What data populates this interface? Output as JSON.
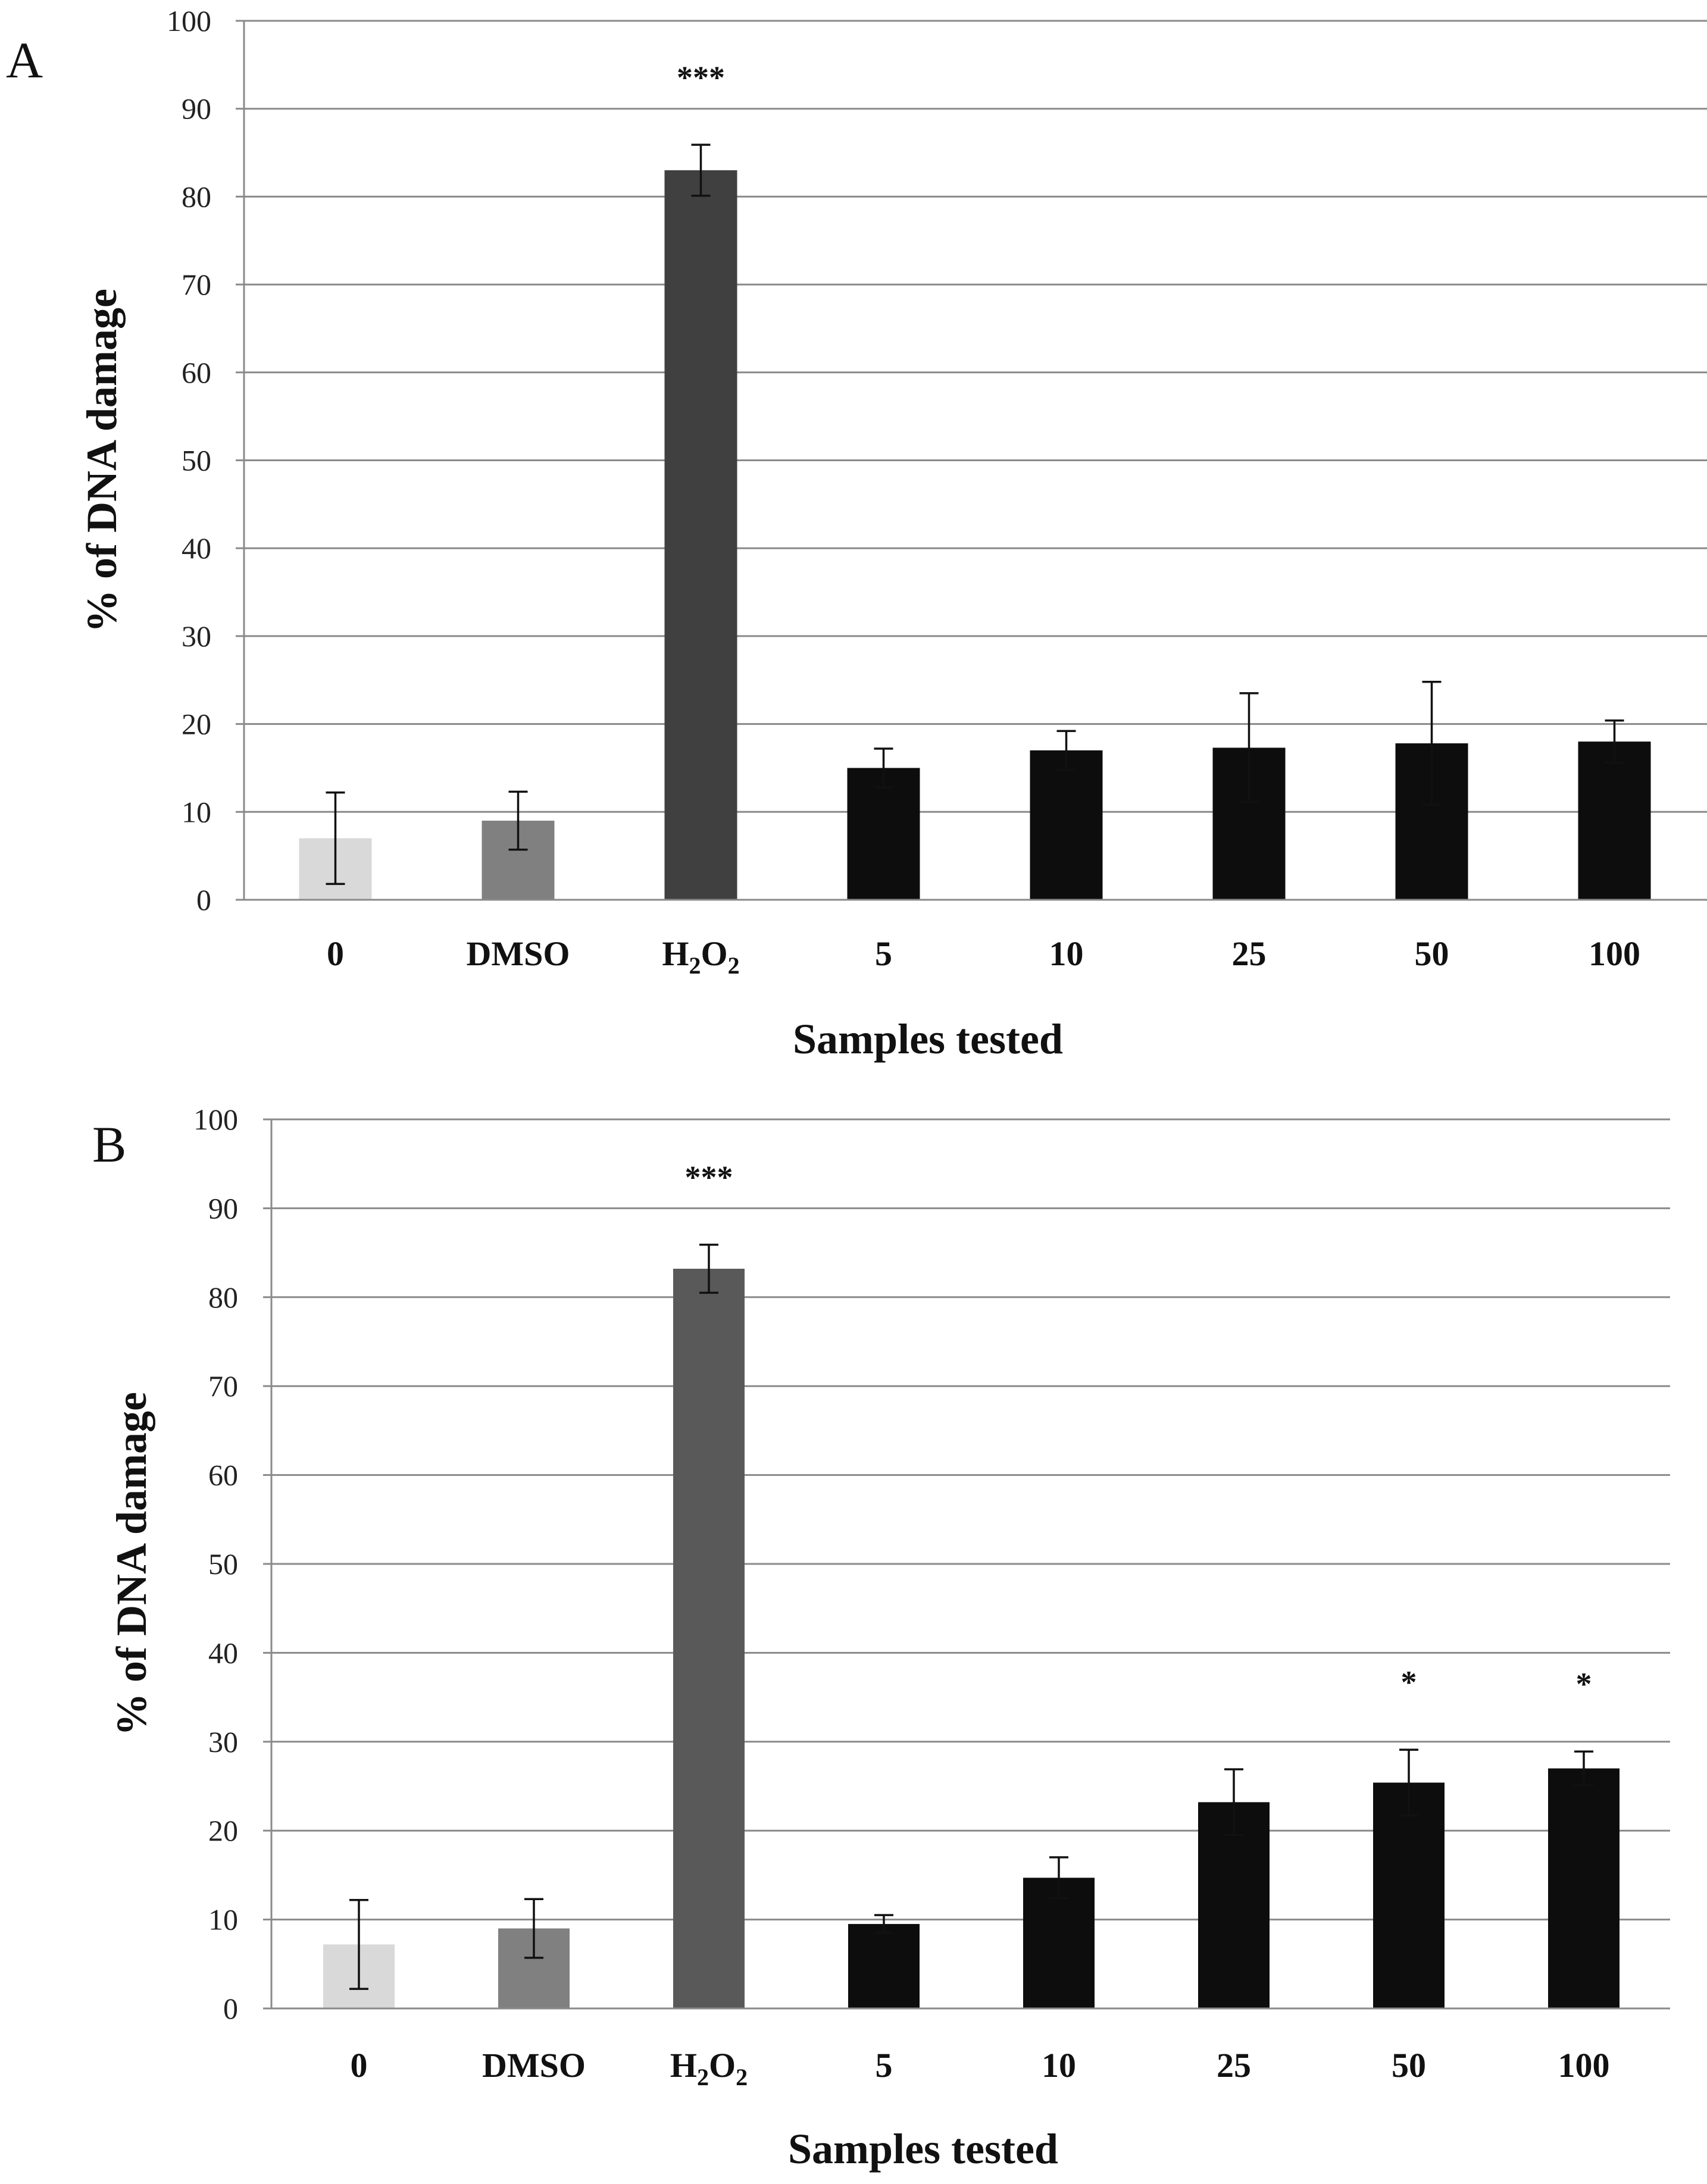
{
  "chart_data": [
    {
      "panel": "A",
      "type": "bar",
      "title": "",
      "xlabel": "Samples tested",
      "ylabel": "% of DNA damage",
      "ylim": [
        0,
        100
      ],
      "yticks": [
        0,
        10,
        20,
        30,
        40,
        50,
        60,
        70,
        80,
        90,
        100
      ],
      "grid": true,
      "categories": [
        "0",
        "DMSO",
        "H2O2",
        "5",
        "10",
        "25",
        "50",
        "100"
      ],
      "values": [
        7,
        9,
        83,
        15,
        17,
        17.3,
        17.8,
        18
      ],
      "errors": [
        5.2,
        3.3,
        2.9,
        2.2,
        2.2,
        6.2,
        7.0,
        2.4
      ],
      "colors": [
        "#d9d9d9",
        "#808080",
        "#404040",
        "#0d0d0d",
        "#0d0d0d",
        "#0d0d0d",
        "#0d0d0d",
        "#0d0d0d"
      ],
      "significance": [
        "",
        "",
        "***",
        "",
        "",
        "",
        "",
        ""
      ]
    },
    {
      "panel": "B",
      "type": "bar",
      "title": "",
      "xlabel": "Samples tested",
      "ylabel": "% of DNA damage",
      "ylim": [
        0,
        100
      ],
      "yticks": [
        0,
        10,
        20,
        30,
        40,
        50,
        60,
        70,
        80,
        90,
        100
      ],
      "grid": true,
      "categories": [
        "0",
        "DMSO",
        "H2O2",
        "5",
        "10",
        "25",
        "50",
        "100"
      ],
      "values": [
        7.2,
        9,
        83.2,
        9.5,
        14.7,
        23.2,
        25.4,
        27
      ],
      "errors": [
        5.0,
        3.3,
        2.7,
        1.0,
        2.3,
        3.7,
        3.7,
        1.9
      ],
      "colors": [
        "#d9d9d9",
        "#808080",
        "#595959",
        "#0d0d0d",
        "#0d0d0d",
        "#0d0d0d",
        "#0d0d0d",
        "#0d0d0d"
      ],
      "significance": [
        "",
        "",
        "***",
        "",
        "",
        "",
        "*",
        "*"
      ]
    }
  ]
}
